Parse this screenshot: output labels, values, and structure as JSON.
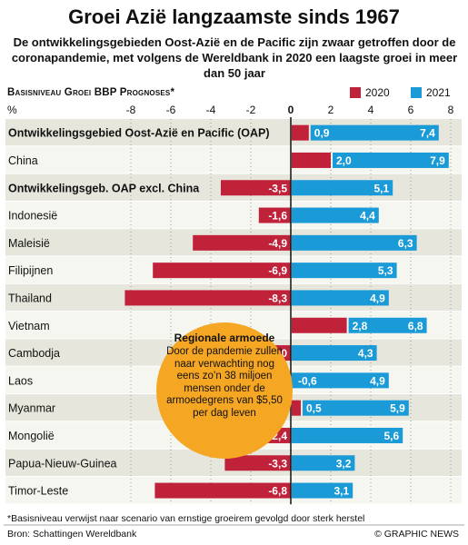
{
  "header": {
    "title": "Groei Azië langzaamste sinds 1967",
    "subtitle": "De ontwikkelingsgebieden Oost-Azië en de Pacific zijn zwaar getroffen door de coronapandemie, met volgens de Wereldbank in 2020 een laagste groei in meer dan 50 jaar"
  },
  "chart_data": {
    "type": "bar",
    "orientation": "horizontal",
    "title": "Basisniveau Groei BBP Prognoses*",
    "xlabel": "%",
    "xlim": [
      -10,
      8
    ],
    "ticks": [
      "-8",
      "-6",
      "-4",
      "-2",
      "0",
      "2",
      "4",
      "6",
      "8"
    ],
    "tick_values": [
      -8,
      -6,
      -4,
      -2,
      0,
      2,
      4,
      6,
      8
    ],
    "grid": false,
    "legend_position": "top-right",
    "categories": [
      "Ontwikkelingsgebied Oost-Azië en Pacific (OAP)",
      "China",
      "Ontwikkelingsgeb. OAP excl. China",
      "Indonesië",
      "Maleisië",
      "Filipijnen",
      "Thailand",
      "Vietnam",
      "Cambodja",
      "Laos",
      "Myanmar",
      "Mongolië",
      "Papua-Nieuw-Guinea",
      "Timor-Leste"
    ],
    "bold_categories": [
      0,
      2
    ],
    "series": [
      {
        "name": "2020",
        "color": "#c0223a",
        "values": [
          0.9,
          2.0,
          -3.5,
          -1.6,
          -4.9,
          -6.9,
          -8.3,
          2.8,
          -2.0,
          -0.6,
          0.5,
          -2.4,
          -3.3,
          -6.8
        ],
        "labels": [
          "0,9",
          "2,0",
          "-3,5",
          "-1,6",
          "-4,9",
          "-6,9",
          "-8,3",
          "2,8",
          "-2,0",
          "-0,6",
          "0,5",
          "-2,4",
          "-3,3",
          "-6,8"
        ]
      },
      {
        "name": "2021",
        "color": "#1a9ad6",
        "values": [
          7.4,
          7.9,
          5.1,
          4.4,
          6.3,
          5.3,
          4.9,
          6.8,
          4.3,
          4.9,
          5.9,
          5.6,
          3.2,
          3.1
        ],
        "labels": [
          "7,4",
          "7,9",
          "5,1",
          "4,4",
          "6,3",
          "5,3",
          "4,9",
          "6,8",
          "4,3",
          "4,9",
          "5,9",
          "5,6",
          "3,2",
          "3,1"
        ]
      }
    ]
  },
  "callout": {
    "title": "Regionale armoede",
    "body": "Door de pandemie zullen naar verwachting nog eens zo’n 38 miljoen mensen onder de armoedegrens van $5,50 per dag leven",
    "color": "#f5a623"
  },
  "footer": {
    "footnote": "*Basisniveau verwijst naar scenario van ernstige groeirem gevolgd door sterk herstel",
    "source": "Bron: Schattingen Wereldbank",
    "credit": "© GRAPHIC NEWS"
  }
}
